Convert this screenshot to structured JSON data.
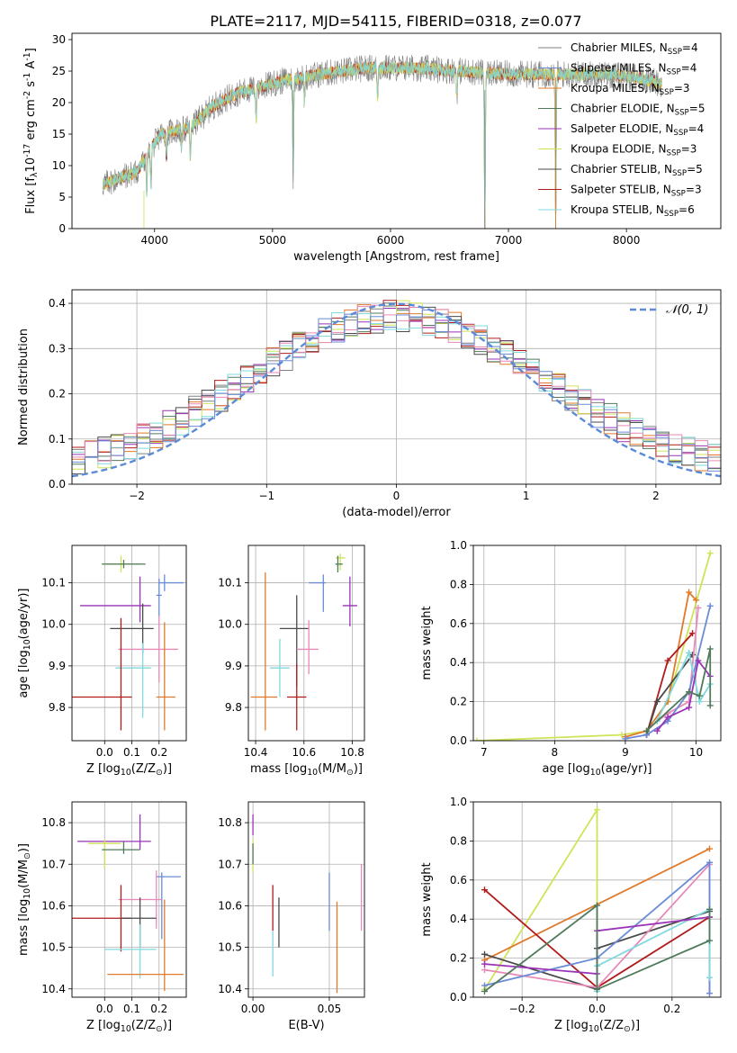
{
  "figure_title": "PLATE=2117, MJD=54115, FIBERID=0318, z=0.077",
  "colors": {
    "chabrier_miles": "#808080",
    "salpeter_miles": "#6a8bd6",
    "kroupa_miles": "#e07a2a",
    "chabrier_elodie": "#4f7a5c",
    "salpeter_elodie": "#9a33b8",
    "kroupa_elodie": "#cfe357",
    "chabrier_stelib": "#4a4a4a",
    "salpeter_stelib": "#b01c1c",
    "kroupa_stelib": "#7fd9dd",
    "pink": "#e88ab8",
    "normal_curve": "#5b8bd6"
  },
  "legend_spectrum": [
    {
      "pre": "Chabrier MILES, N",
      "sub": "SSP",
      "post": "=4",
      "color": "#808080"
    },
    {
      "pre": "Salpeter MILES, N",
      "sub": "SSP",
      "post": "=4",
      "color": "#6a8bd6"
    },
    {
      "pre": "Kroupa MILES, N",
      "sub": "SSP",
      "post": "=3",
      "color": "#e07a2a"
    },
    {
      "pre": "Chabrier ELODIE, N",
      "sub": "SSP",
      "post": "=5",
      "color": "#4f7a5c"
    },
    {
      "pre": "Salpeter ELODIE, N",
      "sub": "SSP",
      "post": "=4",
      "color": "#9a33b8"
    },
    {
      "pre": "Kroupa ELODIE, N",
      "sub": "SSP",
      "post": "=3",
      "color": "#cfe357"
    },
    {
      "pre": "Chabrier STELIB, N",
      "sub": "SSP",
      "post": "=5",
      "color": "#4a4a4a"
    },
    {
      "pre": "Salpeter STELIB, N",
      "sub": "SSP",
      "post": "=3",
      "color": "#b01c1c"
    },
    {
      "pre": "Kroupa STELIB, N",
      "sub": "SSP",
      "post": "=6",
      "color": "#7fd9dd"
    }
  ],
  "legend_hist": {
    "label": "𝒩(0, 1)"
  },
  "chart_data": [
    {
      "id": "spectrum",
      "type": "line",
      "xlabel": "wavelength [Angstrom, rest frame]",
      "ylabel": "Flux [f$_\\lambda$10$^{-17}$ erg cm$^{-2}$ s$^{-1}$ A$^{-1}$]",
      "xlim": [
        3300,
        8800
      ],
      "ylim": [
        0,
        31
      ],
      "xticks": [
        4000,
        5000,
        6000,
        7000,
        8000
      ],
      "yticks": [
        0,
        5,
        10,
        15,
        20,
        25,
        30
      ],
      "grid": false,
      "legend_position": "right",
      "continuum": [
        [
          3560,
          7
        ],
        [
          3700,
          8
        ],
        [
          3850,
          9
        ],
        [
          3950,
          12
        ],
        [
          4050,
          15
        ],
        [
          4300,
          16
        ],
        [
          4500,
          19.5
        ],
        [
          4700,
          21.5
        ],
        [
          4900,
          22.5
        ],
        [
          5100,
          23.5
        ],
        [
          5400,
          24.5
        ],
        [
          5800,
          25.5
        ],
        [
          6200,
          25.5
        ],
        [
          6600,
          25
        ],
        [
          7000,
          24.5
        ],
        [
          7400,
          24.5
        ],
        [
          7800,
          24.5
        ],
        [
          8100,
          24
        ],
        [
          8300,
          23
        ]
      ],
      "dips": [
        [
          3934,
          6
        ],
        [
          3969,
          5.5
        ],
        [
          4101,
          4
        ],
        [
          4227,
          3
        ],
        [
          4304,
          5
        ],
        [
          4861,
          5
        ],
        [
          5175,
          16
        ],
        [
          5270,
          4
        ],
        [
          5890,
          5
        ],
        [
          6563,
          4
        ],
        [
          6800,
          25
        ],
        [
          7400,
          25
        ]
      ]
    },
    {
      "id": "residuals",
      "type": "histogram",
      "xlabel": "(data-model)/error",
      "ylabel": "Normed distribution",
      "xlim": [
        -2.5,
        2.5
      ],
      "ylim": [
        0,
        0.43
      ],
      "xticks": [
        -2,
        -1,
        0,
        1,
        2
      ],
      "yticks": [
        0.0,
        0.1,
        0.2,
        0.3,
        0.4
      ],
      "grid": true,
      "legend_position": "top-right",
      "bin_width": 0.1,
      "amplitude": 0.4
    },
    {
      "id": "age_vs_Z",
      "type": "errorbar",
      "xlabel": "Z [log$_{10}$($Z/Z_\\odot$)]",
      "ylabel": "age  [log$_{10}$($age/yr$)]",
      "xlim": [
        -0.12,
        0.3
      ],
      "ylim": [
        9.72,
        10.19
      ],
      "xticks": [
        0.0,
        0.1,
        0.2
      ],
      "yticks": [
        9.8,
        9.9,
        10.0,
        10.1
      ],
      "grid": true,
      "points": [
        {
          "x": 0.06,
          "y": 10.145,
          "xl": 0.07,
          "xh": 0.07,
          "yl": 0.02,
          "yh": 0.02,
          "c": "#cfe357"
        },
        {
          "x": 0.07,
          "y": 10.145,
          "xl": 0.08,
          "xh": 0.08,
          "yl": 0.01,
          "yh": 0.01,
          "c": "#4f7a5c"
        },
        {
          "x": 0.22,
          "y": 10.1,
          "xl": 0.02,
          "xh": 0.07,
          "yl": 0.02,
          "yh": 0.02,
          "c": "#6a8bd6"
        },
        {
          "x": 0.2,
          "y": 10.07,
          "xl": 0.01,
          "xh": 0.01,
          "yl": 0.05,
          "yh": 0.04,
          "c": "#6a8bd6"
        },
        {
          "x": 0.13,
          "y": 10.045,
          "xl": 0.22,
          "xh": 0.04,
          "yl": 0.04,
          "yh": 0.07,
          "c": "#9a33b8"
        },
        {
          "x": 0.14,
          "y": 9.99,
          "xl": 0.12,
          "xh": 0.04,
          "yl": 0.06,
          "yh": 0.06,
          "c": "#4a4a4a"
        },
        {
          "x": 0.2,
          "y": 9.94,
          "xl": 0.15,
          "xh": 0.07,
          "yl": 0.08,
          "yh": 0.08,
          "c": "#e88ab8"
        },
        {
          "x": 0.14,
          "y": 9.895,
          "xl": 0.1,
          "xh": 0.03,
          "yl": 0.12,
          "yh": 0.06,
          "c": "#7fd9dd"
        },
        {
          "x": 0.06,
          "y": 9.825,
          "xl": 0.18,
          "xh": 0.04,
          "yl": 0.08,
          "yh": 0.19,
          "c": "#b01c1c"
        },
        {
          "x": 0.22,
          "y": 9.825,
          "xl": 0.03,
          "xh": 0.04,
          "yl": 0.08,
          "yh": 0.18,
          "c": "#e07a2a"
        }
      ]
    },
    {
      "id": "age_vs_mass",
      "type": "errorbar",
      "xlabel": "mass [log$_{10}$($M/M_\\odot$)]",
      "ylabel": "",
      "xlim": [
        10.37,
        10.85
      ],
      "ylim": [
        9.72,
        10.19
      ],
      "xticks": [
        10.4,
        10.6,
        10.8
      ],
      "yticks": [
        9.8,
        9.9,
        10.0,
        10.1
      ],
      "grid": true,
      "points": [
        {
          "x": 10.75,
          "y": 10.16,
          "xl": 0.02,
          "xh": 0.02,
          "yl": 0.03,
          "yh": 0.01,
          "c": "#cfe357"
        },
        {
          "x": 10.74,
          "y": 10.145,
          "xl": 0.01,
          "xh": 0.02,
          "yl": 0.02,
          "yh": 0.02,
          "c": "#4f7a5c"
        },
        {
          "x": 10.68,
          "y": 10.1,
          "xl": 0.06,
          "xh": 0.01,
          "yl": 0.07,
          "yh": 0.02,
          "c": "#6a8bd6"
        },
        {
          "x": 10.79,
          "y": 10.045,
          "xl": 0.03,
          "xh": 0.03,
          "yl": 0.05,
          "yh": 0.07,
          "c": "#9a33b8"
        },
        {
          "x": 10.57,
          "y": 9.99,
          "xl": 0.07,
          "xh": 0.05,
          "yl": 0.14,
          "yh": 0.08,
          "c": "#4a4a4a"
        },
        {
          "x": 10.62,
          "y": 9.94,
          "xl": 0.05,
          "xh": 0.04,
          "yl": 0.06,
          "yh": 0.07,
          "c": "#e88ab8"
        },
        {
          "x": 10.5,
          "y": 9.895,
          "xl": 0.04,
          "xh": 0.04,
          "yl": 0.07,
          "yh": 0.07,
          "c": "#7fd9dd"
        },
        {
          "x": 10.57,
          "y": 9.825,
          "xl": 0.04,
          "xh": 0.04,
          "yl": 0.08,
          "yh": 0.08,
          "c": "#b01c1c"
        },
        {
          "x": 10.44,
          "y": 9.825,
          "xl": 0.06,
          "xh": 0.05,
          "yl": 0.08,
          "yh": 0.3,
          "c": "#e07a2a"
        }
      ]
    },
    {
      "id": "massweight_vs_age",
      "type": "line",
      "xlabel": "age  [log$_{10}$($age/yr$)]",
      "ylabel": "mass weight",
      "xlim": [
        6.85,
        10.35
      ],
      "ylim": [
        0,
        1.0
      ],
      "xticks": [
        7,
        8,
        9,
        10
      ],
      "yticks": [
        0.0,
        0.2,
        0.4,
        0.6,
        0.8,
        1.0
      ],
      "grid": true,
      "series": [
        {
          "c": "#cfe357",
          "pts": [
            [
              6.9,
              0.0
            ],
            [
              8.95,
              0.03
            ],
            [
              9.3,
              0.05
            ],
            [
              9.6,
              0.2
            ],
            [
              10.2,
              0.96
            ]
          ]
        },
        {
          "c": "#e07a2a",
          "pts": [
            [
              9.0,
              0.02
            ],
            [
              9.3,
              0.05
            ],
            [
              9.6,
              0.2
            ],
            [
              9.9,
              0.76
            ],
            [
              10.0,
              0.72
            ]
          ]
        },
        {
          "c": "#b01c1c",
          "pts": [
            [
              9.3,
              0.03
            ],
            [
              9.6,
              0.41
            ],
            [
              9.95,
              0.55
            ]
          ]
        },
        {
          "c": "#4a4a4a",
          "pts": [
            [
              9.3,
              0.03
            ],
            [
              9.45,
              0.2
            ],
            [
              9.95,
              0.44
            ]
          ]
        },
        {
          "c": "#e88ab8",
          "pts": [
            [
              9.45,
              0.1
            ],
            [
              9.6,
              0.14
            ],
            [
              9.9,
              0.2
            ],
            [
              10.03,
              0.68
            ]
          ]
        },
        {
          "c": "#6a8bd6",
          "pts": [
            [
              9.0,
              0.01
            ],
            [
              9.3,
              0.03
            ],
            [
              9.6,
              0.1
            ],
            [
              9.9,
              0.25
            ],
            [
              10.2,
              0.69
            ]
          ]
        },
        {
          "c": "#7fd9dd",
          "pts": [
            [
              9.45,
              0.1
            ],
            [
              9.9,
              0.45
            ],
            [
              10.05,
              0.2
            ],
            [
              10.2,
              0.29
            ]
          ]
        },
        {
          "c": "#9a33b8",
          "pts": [
            [
              9.45,
              0.05
            ],
            [
              9.6,
              0.12
            ],
            [
              9.9,
              0.17
            ],
            [
              10.03,
              0.41
            ],
            [
              10.2,
              0.33
            ]
          ]
        },
        {
          "c": "#4f7a5c",
          "pts": [
            [
              9.3,
              0.05
            ],
            [
              9.9,
              0.25
            ],
            [
              10.05,
              0.23
            ],
            [
              10.2,
              0.47
            ],
            [
              10.2,
              0.18
            ]
          ]
        }
      ]
    },
    {
      "id": "mass_vs_Z",
      "type": "errorbar",
      "xlabel": "Z [log$_{10}$($Z/Z_\\odot$)]",
      "ylabel": "mass [log$_{10}$($M/M_\\odot$)]",
      "xlim": [
        -0.12,
        0.3
      ],
      "ylim": [
        10.38,
        10.85
      ],
      "xticks": [
        0.0,
        0.1,
        0.2
      ],
      "yticks": [
        10.4,
        10.5,
        10.6,
        10.7,
        10.8
      ],
      "grid": true,
      "points": [
        {
          "x": 0.13,
          "y": 10.755,
          "xl": 0.23,
          "xh": 0.04,
          "yl": 0.02,
          "yh": 0.065,
          "c": "#9a33b8"
        },
        {
          "x": 0.0,
          "y": 10.75,
          "xl": 0.06,
          "xh": 0.06,
          "yl": 0.06,
          "yh": 0.01,
          "c": "#cfe357"
        },
        {
          "x": 0.07,
          "y": 10.735,
          "xl": 0.08,
          "xh": 0.06,
          "yl": 0.01,
          "yh": 0.02,
          "c": "#4f7a5c"
        },
        {
          "x": 0.21,
          "y": 10.67,
          "xl": 0.02,
          "xh": 0.07,
          "yl": 0.15,
          "yh": 0.01,
          "c": "#6a8bd6"
        },
        {
          "x": 0.19,
          "y": 10.615,
          "xl": 0.14,
          "xh": 0.02,
          "yl": 0.07,
          "yh": 0.07,
          "c": "#e88ab8"
        },
        {
          "x": 0.06,
          "y": 10.57,
          "xl": 0.18,
          "xh": 0.04,
          "yl": 0.08,
          "yh": 0.08,
          "c": "#b01c1c"
        },
        {
          "x": 0.13,
          "y": 10.57,
          "xl": 0.07,
          "xh": 0.06,
          "yl": 0.07,
          "yh": 0.05,
          "c": "#4a4a4a"
        },
        {
          "x": 0.13,
          "y": 10.495,
          "xl": 0.13,
          "xh": 0.06,
          "yl": 0.07,
          "yh": 0.06,
          "c": "#7fd9dd"
        },
        {
          "x": 0.22,
          "y": 10.435,
          "xl": 0.21,
          "xh": 0.07,
          "yl": 0.04,
          "yh": 0.18,
          "c": "#e07a2a"
        }
      ]
    },
    {
      "id": "mass_vs_ebv",
      "type": "errorbar",
      "xlabel": "E(B-V)",
      "ylabel": "",
      "xlim": [
        -0.003,
        0.073
      ],
      "ylim": [
        10.38,
        10.85
      ],
      "xticks": [
        0.0,
        0.05
      ],
      "yticks": [
        10.4,
        10.5,
        10.6,
        10.7,
        10.8
      ],
      "grid": true,
      "points": [
        {
          "x": 0.0,
          "y": 10.8,
          "xl": 0,
          "xh": 0,
          "yl": 0.03,
          "yh": 0.02,
          "c": "#9a33b8"
        },
        {
          "x": 0.0,
          "y": 10.73,
          "xl": 0,
          "xh": 0,
          "yl": 0.05,
          "yh": 0.03,
          "c": "#cfe357"
        },
        {
          "x": 0.0,
          "y": 10.72,
          "xl": 0,
          "xh": 0,
          "yl": 0.02,
          "yh": 0.03,
          "c": "#4f7a5c"
        },
        {
          "x": 0.013,
          "y": 10.6,
          "xl": 0,
          "xh": 0,
          "yl": 0.06,
          "yh": 0.05,
          "c": "#b01c1c"
        },
        {
          "x": 0.017,
          "y": 10.56,
          "xl": 0,
          "xh": 0,
          "yl": 0.06,
          "yh": 0.06,
          "c": "#4a4a4a"
        },
        {
          "x": 0.013,
          "y": 10.49,
          "xl": 0,
          "xh": 0,
          "yl": 0.06,
          "yh": 0.05,
          "c": "#7fd9dd"
        },
        {
          "x": 0.05,
          "y": 10.61,
          "xl": 0,
          "xh": 0,
          "yl": 0.07,
          "yh": 0.07,
          "c": "#6a8bd6"
        },
        {
          "x": 0.055,
          "y": 10.5,
          "xl": 0,
          "xh": 0,
          "yl": 0.11,
          "yh": 0.11,
          "c": "#e07a2a"
        },
        {
          "x": 0.071,
          "y": 10.62,
          "xl": 0,
          "xh": 0,
          "yl": 0.08,
          "yh": 0.08,
          "c": "#e88ab8"
        }
      ]
    },
    {
      "id": "massweight_vs_Z",
      "type": "line",
      "xlabel": "Z [log$_{10}$($Z/Z_\\odot$)]",
      "ylabel": "mass weight",
      "xlim": [
        -0.33,
        0.33
      ],
      "ylim": [
        0,
        1.0
      ],
      "xticks": [
        -0.2,
        0.0,
        0.2
      ],
      "yticks": [
        0.0,
        0.2,
        0.4,
        0.6,
        0.8,
        1.0
      ],
      "grid": true,
      "series": [
        {
          "c": "#cfe357",
          "pts": [
            [
              -0.3,
              0.04
            ],
            [
              0.0,
              0.96
            ],
            [
              0.0,
              0.16
            ]
          ]
        },
        {
          "c": "#e07a2a",
          "pts": [
            [
              -0.3,
              0.19
            ],
            [
              0.3,
              0.76
            ]
          ]
        },
        {
          "c": "#b01c1c",
          "pts": [
            [
              -0.3,
              0.55
            ],
            [
              0.0,
              0.05
            ],
            [
              0.3,
              0.41
            ]
          ]
        },
        {
          "c": "#4a4a4a",
          "pts": [
            [
              -0.3,
              0.22
            ],
            [
              0.0,
              0.04
            ],
            [
              0.0,
              0.25
            ],
            [
              0.3,
              0.44
            ]
          ]
        },
        {
          "c": "#e88ab8",
          "pts": [
            [
              -0.3,
              0.14
            ],
            [
              0.0,
              0.05
            ],
            [
              0.3,
              0.68
            ],
            [
              0.3,
              0.02
            ]
          ]
        },
        {
          "c": "#6a8bd6",
          "pts": [
            [
              -0.3,
              0.06
            ],
            [
              0.0,
              0.2
            ],
            [
              0.3,
              0.69
            ],
            [
              0.3,
              0.02
            ]
          ]
        },
        {
          "c": "#7fd9dd",
          "pts": [
            [
              0.0,
              0.03
            ],
            [
              0.0,
              0.16
            ],
            [
              0.3,
              0.45
            ],
            [
              0.3,
              0.1
            ]
          ]
        },
        {
          "c": "#9a33b8",
          "pts": [
            [
              -0.3,
              0.17
            ],
            [
              0.0,
              0.12
            ],
            [
              0.0,
              0.34
            ],
            [
              0.3,
              0.41
            ]
          ]
        },
        {
          "c": "#4f7a5c",
          "pts": [
            [
              -0.3,
              0.03
            ],
            [
              0.0,
              0.47
            ],
            [
              0.0,
              0.04
            ],
            [
              0.3,
              0.29
            ],
            [
              0.3,
              0.45
            ]
          ]
        }
      ]
    }
  ]
}
